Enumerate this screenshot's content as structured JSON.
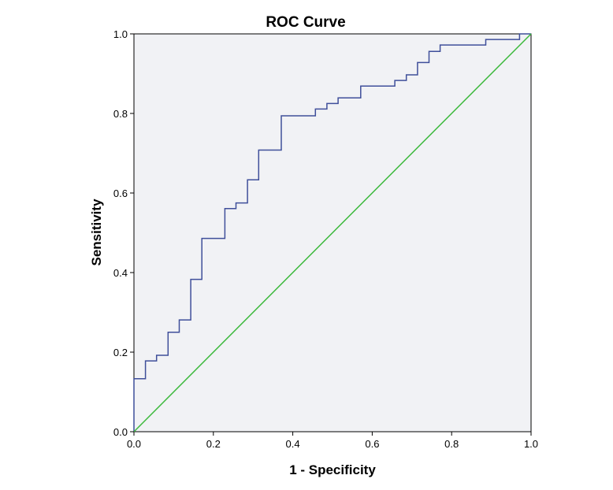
{
  "chart_data": {
    "type": "line",
    "title": "ROC Curve",
    "xlabel": "1 - Specificity",
    "ylabel": "Sensitivity",
    "xlim": [
      0.0,
      1.0
    ],
    "ylim": [
      0.0,
      1.0
    ],
    "x_ticks": [
      "0.0",
      "0.2",
      "0.4",
      "0.6",
      "0.8",
      "1.0"
    ],
    "y_ticks": [
      "0.0",
      "0.2",
      "0.4",
      "0.6",
      "0.8",
      "1.0"
    ],
    "grid": false,
    "plot_background": "#f1f2f5",
    "series": [
      {
        "color": "#3f4f9a",
        "step": true,
        "points": [
          [
            0.0,
            0.0
          ],
          [
            0.0,
            0.133
          ],
          [
            0.029,
            0.133
          ],
          [
            0.029,
            0.178
          ],
          [
            0.057,
            0.178
          ],
          [
            0.057,
            0.192
          ],
          [
            0.086,
            0.192
          ],
          [
            0.086,
            0.25
          ],
          [
            0.114,
            0.25
          ],
          [
            0.114,
            0.281
          ],
          [
            0.143,
            0.281
          ],
          [
            0.143,
            0.383
          ],
          [
            0.171,
            0.383
          ],
          [
            0.171,
            0.486
          ],
          [
            0.229,
            0.486
          ],
          [
            0.229,
            0.561
          ],
          [
            0.257,
            0.561
          ],
          [
            0.257,
            0.575
          ],
          [
            0.286,
            0.575
          ],
          [
            0.286,
            0.633
          ],
          [
            0.314,
            0.633
          ],
          [
            0.314,
            0.708
          ],
          [
            0.371,
            0.708
          ],
          [
            0.371,
            0.794
          ],
          [
            0.457,
            0.794
          ],
          [
            0.457,
            0.811
          ],
          [
            0.486,
            0.811
          ],
          [
            0.486,
            0.825
          ],
          [
            0.514,
            0.825
          ],
          [
            0.514,
            0.839
          ],
          [
            0.571,
            0.839
          ],
          [
            0.571,
            0.869
          ],
          [
            0.657,
            0.869
          ],
          [
            0.657,
            0.883
          ],
          [
            0.686,
            0.883
          ],
          [
            0.686,
            0.897
          ],
          [
            0.714,
            0.897
          ],
          [
            0.714,
            0.928
          ],
          [
            0.743,
            0.928
          ],
          [
            0.743,
            0.956
          ],
          [
            0.771,
            0.956
          ],
          [
            0.771,
            0.972
          ],
          [
            0.886,
            0.972
          ],
          [
            0.886,
            0.986
          ],
          [
            0.971,
            0.986
          ],
          [
            0.971,
            1.0
          ],
          [
            1.0,
            1.0
          ]
        ]
      },
      {
        "color": "#3cb93c",
        "step": false,
        "points": [
          [
            0.0,
            0.0
          ],
          [
            1.0,
            1.0
          ]
        ]
      }
    ]
  }
}
